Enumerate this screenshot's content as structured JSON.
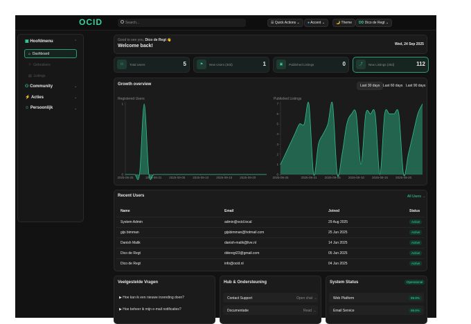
{
  "topbar": {
    "logo": "OCID",
    "search": "Search...",
    "quick_actions": "Quick Actions",
    "accent": "Accent",
    "theme": "Theme",
    "user_initials": "DD",
    "user": "Dico de Regt"
  },
  "sidebar": {
    "sections": [
      {
        "label": "Hoofdmenu",
        "items": [
          "Dashboard",
          "Gebruikers",
          "Listings"
        ]
      },
      {
        "label": "Community"
      },
      {
        "label": "Acties"
      },
      {
        "label": "Persoonlijk"
      }
    ]
  },
  "welcome": {
    "greeting": "Good to see you,",
    "name": "Dico de Regt 👋",
    "title": "Welcome back!",
    "date": "Wed, 24 Sep 2025"
  },
  "stats": [
    {
      "label": "Total Users",
      "value": 5
    },
    {
      "label": "New Users (30d)",
      "value": 1
    },
    {
      "label": "Published Listings",
      "value": 0
    },
    {
      "label": "New Listings (30d)",
      "value": 112
    }
  ],
  "growth": {
    "title": "Growth overview",
    "ranges": [
      "Last 30 days",
      "Last 60 days",
      "Last 90 days"
    ],
    "charts": [
      {
        "type": "area",
        "title": "Registered Users",
        "color": "#2fbf8f",
        "x": [
          "2025-08-25",
          "2025-08-26",
          "2025-08-27",
          "2025-08-28",
          "2025-08-29",
          "2025-08-30",
          "2025-08-31",
          "2025-09-01",
          "2025-09-02",
          "2025-09-03",
          "2025-09-04",
          "2025-09-05",
          "2025-09-06",
          "2025-09-07",
          "2025-09-08",
          "2025-09-09",
          "2025-09-10",
          "2025-09-11",
          "2025-09-12",
          "2025-09-13",
          "2025-09-14",
          "2025-09-15",
          "2025-09-16",
          "2025-09-17",
          "2025-09-18",
          "2025-09-19",
          "2025-09-20",
          "2025-09-21",
          "2025-09-22",
          "2025-09-23",
          "2025-09-24"
        ],
        "values": [
          0,
          0,
          0,
          0,
          1,
          0,
          0,
          0,
          0,
          0,
          0,
          0,
          0,
          0,
          0,
          0,
          0,
          0,
          0,
          0,
          0,
          0,
          0,
          0,
          0,
          0,
          0,
          0,
          0,
          0,
          0
        ],
        "ylim": [
          0,
          1
        ],
        "yticks": [
          0,
          1
        ],
        "xticks": [
          "2025-08-25",
          "2025-08-31",
          "2025-09-05",
          "2025-09-10",
          "2025-09-15",
          "2025-09-20"
        ]
      },
      {
        "type": "area",
        "title": "Published Listings",
        "color": "#2fbf8f",
        "x": [
          "2025-08-25",
          "2025-08-26",
          "2025-08-27",
          "2025-08-28",
          "2025-08-29",
          "2025-08-30",
          "2025-08-31",
          "2025-09-01",
          "2025-09-02",
          "2025-09-03",
          "2025-09-04",
          "2025-09-05",
          "2025-09-06",
          "2025-09-07",
          "2025-09-08",
          "2025-09-09",
          "2025-09-10",
          "2025-09-11",
          "2025-09-12",
          "2025-09-13",
          "2025-09-14",
          "2025-09-15",
          "2025-09-16",
          "2025-09-17",
          "2025-09-18",
          "2025-09-19",
          "2025-09-20",
          "2025-09-21",
          "2025-09-22",
          "2025-09-23",
          "2025-09-24"
        ],
        "values": [
          1,
          2,
          3,
          4,
          5,
          5,
          7,
          0,
          3,
          4,
          5,
          7,
          0,
          2,
          5,
          6,
          6,
          1,
          6,
          6,
          6,
          0,
          6,
          6,
          6,
          6,
          0,
          2,
          4,
          6,
          7
        ],
        "ylim": [
          0,
          7
        ],
        "yticks": [
          0,
          1,
          2,
          3,
          4,
          5,
          6,
          7
        ],
        "xticks": [
          "2025-08-25",
          "2025-08-31",
          "2025-09-05",
          "2025-09-10",
          "2025-09-15",
          "2025-09-20"
        ]
      }
    ]
  },
  "recent_users": {
    "title": "Recent Users",
    "link": "All Users →",
    "columns": [
      "Name",
      "Email",
      "Joined",
      "Status"
    ],
    "rows": [
      [
        "System Admin",
        "admin@ocid.local",
        "29 Aug 2025",
        "Active"
      ],
      [
        "gijs bimman",
        "gijsbimman@hotmail.com",
        "25 Jun 2025",
        "Active"
      ],
      [
        "Danish Malik",
        "danish-malik@live.nl",
        "14 Jun 2025",
        "Active"
      ],
      [
        "Dico de Regt",
        "dderegt23@gmail.com",
        "05 Jun 2025",
        "Active"
      ],
      [
        "Dico de Regt",
        "info@ocid.nl",
        "04 Jun 2025",
        "Active"
      ]
    ]
  },
  "faq": {
    "title": "Veelgestelde Vragen",
    "items": [
      "Hoe kan ik een nieuwe inzending doen?",
      "Hoe beheer ik mijn e-mail notificaties?"
    ]
  },
  "hub": {
    "title": "Hub & Ondersteuning",
    "items": [
      {
        "label": "Contact Support",
        "action": "Open chat →"
      },
      {
        "label": "Documentatie",
        "action": "Read →"
      }
    ]
  },
  "status": {
    "title": "System Status",
    "badge": "Operational",
    "items": [
      {
        "label": "Web Platform",
        "value": "99.9%"
      },
      {
        "label": "Email Service",
        "value": "99.9%"
      }
    ]
  }
}
